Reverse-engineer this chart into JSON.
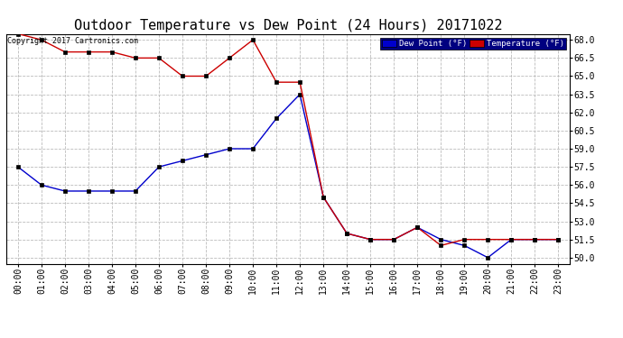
{
  "title": "Outdoor Temperature vs Dew Point (24 Hours) 20171022",
  "copyright": "Copyright 2017 Cartronics.com",
  "legend_labels": [
    "Dew Point (°F)",
    "Temperature (°F)"
  ],
  "x_labels": [
    "00:00",
    "01:00",
    "02:00",
    "03:00",
    "04:00",
    "05:00",
    "06:00",
    "07:00",
    "08:00",
    "09:00",
    "10:00",
    "11:00",
    "12:00",
    "13:00",
    "14:00",
    "15:00",
    "16:00",
    "17:00",
    "18:00",
    "19:00",
    "20:00",
    "21:00",
    "22:00",
    "23:00"
  ],
  "temperature": [
    68.5,
    68.0,
    67.0,
    67.0,
    67.0,
    66.5,
    66.5,
    65.0,
    65.0,
    66.5,
    68.0,
    64.5,
    64.5,
    55.0,
    52.0,
    51.5,
    51.5,
    52.5,
    51.0,
    51.5,
    51.5,
    51.5,
    51.5,
    51.5
  ],
  "dew_point": [
    57.5,
    56.0,
    55.5,
    55.5,
    55.5,
    55.5,
    57.5,
    58.0,
    58.5,
    59.0,
    59.0,
    61.5,
    63.5,
    55.0,
    52.0,
    51.5,
    51.5,
    52.5,
    51.5,
    51.0,
    50.0,
    51.5,
    51.5,
    51.5
  ],
  "ylim_min": 49.5,
  "ylim_max": 68.5,
  "yticks": [
    50.0,
    51.5,
    53.0,
    54.5,
    56.0,
    57.5,
    59.0,
    60.5,
    62.0,
    63.5,
    65.0,
    66.5,
    68.0
  ],
  "bg_color": "#ffffff",
  "grid_color": "#bbbbbb",
  "line_color_temp": "#cc0000",
  "line_color_dew": "#0000cc",
  "legend_bg_dew": "#0000cc",
  "legend_bg_temp": "#cc0000",
  "title_fontsize": 11,
  "tick_fontsize": 7,
  "copyright_fontsize": 6
}
